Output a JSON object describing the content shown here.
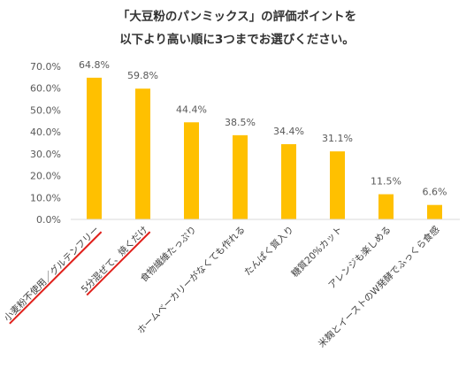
{
  "chart_data": {
    "type": "bar",
    "title": "「大豆粉のパンミックス」の評価ポイントを",
    "subtitle": "以下より高い順に3つまでお選びください。",
    "categories": [
      "小麦粉不使用／グルテンフリー",
      "5分混ぜて、焼くだけ",
      "食物繊維たっぷり",
      "ホームベーカリーがなくても作れる",
      "たんぱく質入り",
      "糖質20%カット",
      "アレンジも楽しめる",
      "米麹とイーストのW発酵でふっくら食感"
    ],
    "values": [
      64.8,
      59.8,
      44.4,
      38.5,
      34.4,
      31.1,
      11.5,
      6.6
    ],
    "data_labels": [
      "64.8%",
      "59.8%",
      "44.4%",
      "38.5%",
      "34.4%",
      "31.1%",
      "11.5%",
      "6.6%"
    ],
    "y_ticks": [
      "0.0%",
      "10.0%",
      "20.0%",
      "30.0%",
      "40.0%",
      "50.0%",
      "60.0%",
      "70.0%"
    ],
    "ylim": [
      0,
      70
    ],
    "xlabel": "",
    "ylabel": "",
    "grid": false,
    "bar_color": "#FFC000",
    "highlight_color": "#E0201B",
    "highlighted_categories": [
      0,
      1
    ]
  }
}
